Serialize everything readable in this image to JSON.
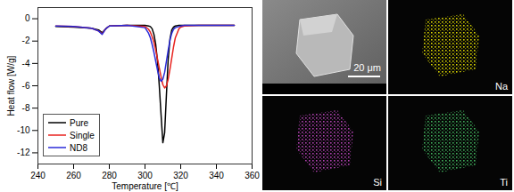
{
  "chart_data": {
    "type": "line",
    "x_label": "Temperature [℃]",
    "y_label": "Heat flow [W/g]",
    "xlim": [
      240,
      360
    ],
    "xticks": [
      240,
      260,
      280,
      300,
      320,
      340,
      360
    ],
    "ylim": [
      -13,
      1
    ],
    "yticks": [
      -12,
      -10,
      -8,
      -6,
      -4,
      -2,
      0
    ],
    "legend": "lower left",
    "x": [
      250,
      260,
      270,
      274,
      276,
      278,
      280,
      290,
      300,
      302,
      303,
      304,
      305,
      306,
      307,
      308,
      309,
      310,
      311,
      312,
      313,
      314,
      315,
      316,
      317,
      319,
      320,
      322,
      330,
      340,
      350
    ],
    "series": [
      {
        "name": "Pure",
        "color": "#000000",
        "values": [
          -0.7,
          -0.75,
          -0.85,
          -1.0,
          -1.25,
          -0.9,
          -0.65,
          -0.6,
          -0.6,
          -0.65,
          -0.7,
          -0.9,
          -1.4,
          -2.3,
          -3.8,
          -6.0,
          -8.6,
          -11.1,
          -10.2,
          -6.8,
          -3.6,
          -1.8,
          -1.0,
          -0.75,
          -0.65,
          -0.6,
          -0.6,
          -0.6,
          -0.6,
          -0.6,
          -0.6
        ]
      },
      {
        "name": "Single",
        "color": "#e8231f",
        "values": [
          -0.65,
          -0.7,
          -0.85,
          -1.1,
          -1.35,
          -0.9,
          -0.65,
          -0.6,
          -0.7,
          -0.95,
          -1.2,
          -1.6,
          -2.1,
          -2.8,
          -3.6,
          -4.4,
          -5.2,
          -5.9,
          -6.2,
          -6.0,
          -5.4,
          -4.5,
          -3.5,
          -2.5,
          -1.7,
          -0.9,
          -0.75,
          -0.65,
          -0.6,
          -0.6,
          -0.6
        ]
      },
      {
        "name": "ND8",
        "color": "#2b2bd9",
        "values": [
          -0.65,
          -0.7,
          -0.85,
          -1.1,
          -1.4,
          -0.9,
          -0.65,
          -0.6,
          -0.8,
          -1.3,
          -1.7,
          -2.3,
          -3.0,
          -3.8,
          -4.6,
          -5.3,
          -5.6,
          -5.4,
          -4.8,
          -3.8,
          -2.8,
          -1.9,
          -1.3,
          -0.95,
          -0.8,
          -0.7,
          -0.65,
          -0.6,
          -0.6,
          -0.6,
          -0.6
        ]
      }
    ]
  },
  "micrographs": {
    "scale_bar": "20 μm",
    "maps": [
      {
        "label": "Na",
        "color": "#d9d400"
      },
      {
        "label": "Si",
        "color": "#b040b0"
      },
      {
        "label": "Ti",
        "color": "#3fae5a"
      }
    ]
  }
}
